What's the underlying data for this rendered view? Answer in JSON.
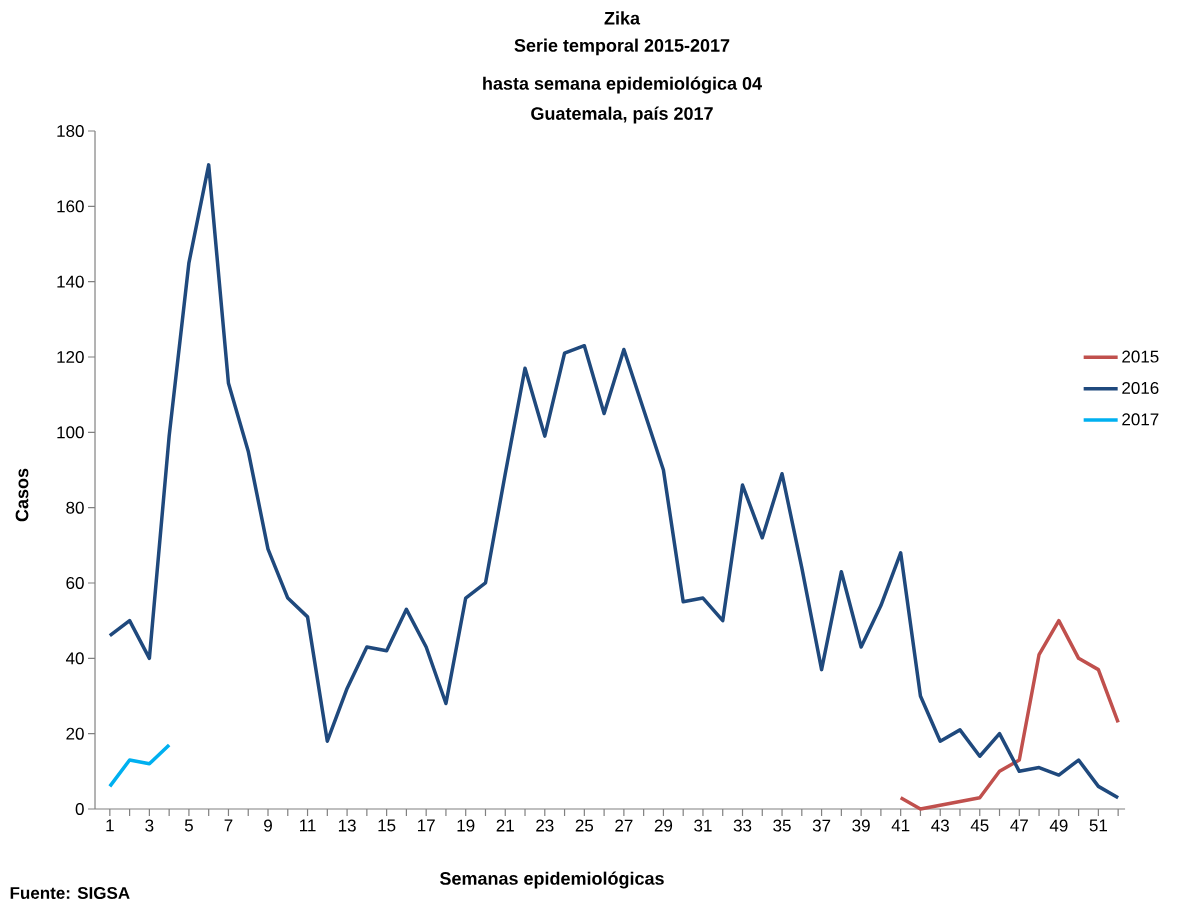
{
  "chart_data": {
    "type": "line",
    "title": "Zika",
    "subtitle": "Serie temporal 2015-2017",
    "annotations": [
      "hasta semana epidemiológica 04",
      "Guatemala, país 2017",
      "Fuente: SIGSA"
    ],
    "xlabel": "Semanas epidemiológicas",
    "ylabel": "Casos",
    "categories": [
      "1",
      null,
      "3",
      null,
      "5",
      null,
      "7",
      null,
      "9",
      null,
      "11",
      null,
      "13",
      null,
      "15",
      null,
      "17",
      null,
      "19",
      null,
      "21",
      null,
      "23",
      null,
      "25",
      null,
      "27",
      null,
      "29",
      null,
      "31",
      null,
      "33",
      null,
      "35",
      null,
      "37",
      null,
      "39",
      null,
      "41",
      null,
      "43",
      null,
      "45",
      null,
      "47",
      null,
      "49",
      null,
      "51",
      null
    ],
    "series": [
      {
        "name": "2015",
        "color": "#c0504d",
        "values": [
          null,
          null,
          null,
          null,
          null,
          null,
          null,
          null,
          null,
          null,
          null,
          null,
          null,
          null,
          null,
          null,
          null,
          null,
          null,
          null,
          null,
          null,
          null,
          null,
          null,
          null,
          null,
          null,
          null,
          null,
          null,
          null,
          null,
          null,
          null,
          null,
          null,
          null,
          null,
          null,
          3,
          0,
          1,
          2,
          3,
          10,
          13,
          41,
          50,
          40,
          37,
          23
        ]
      },
      {
        "name": "2016",
        "color": "#1f497d",
        "values": [
          46,
          50,
          40,
          99,
          145,
          171,
          113,
          95,
          69,
          56,
          51,
          18,
          32,
          43,
          42,
          53,
          43,
          28,
          56,
          60,
          89,
          117,
          99,
          121,
          123,
          105,
          122,
          106,
          90,
          55,
          56,
          50,
          86,
          72,
          89,
          64,
          37,
          63,
          43,
          54,
          68,
          30,
          18,
          21,
          14,
          20,
          10,
          11,
          9,
          13,
          6,
          3
        ]
      },
      {
        "name": "2017",
        "color": "#00b0f0",
        "values": [
          6,
          13,
          12,
          17,
          null,
          null,
          null,
          null,
          null,
          null,
          null,
          null,
          null,
          null,
          null,
          null,
          null,
          null,
          null,
          null,
          null,
          null,
          null,
          null,
          null,
          null,
          null,
          null,
          null,
          null,
          null,
          null,
          null,
          null,
          null,
          null,
          null,
          null,
          null,
          null,
          null,
          null,
          null,
          null,
          null,
          null,
          null,
          null,
          null,
          null,
          null,
          null
        ]
      }
    ],
    "ylim": [
      0,
      180
    ],
    "yticks": [
      0,
      20,
      40,
      60,
      80,
      100,
      120,
      140,
      160,
      180
    ],
    "grid": false,
    "legend": "right",
    "marker": "none",
    "line_style": "solid"
  }
}
